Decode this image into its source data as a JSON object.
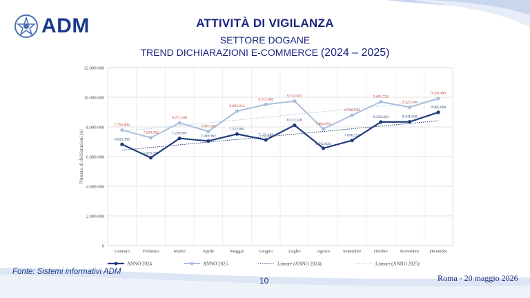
{
  "header": {
    "logo_text": "ADM",
    "title": "ATTIVITÀ DI VIGILANZA",
    "subtitle": "SETTORE DOGANE",
    "trend_main": "TREND DICHIARAZIONI E-COMMERCE ",
    "trend_years": "(2024 – 2025)"
  },
  "footer": {
    "source": "Fonte: Sistemi informativi ADM",
    "page_number": "10",
    "place_date": "Roma - 20 maggio 2026"
  },
  "colors": {
    "series_2024": "#1f3a7a",
    "series_2025": "#a9bedc",
    "label_2025": "#c0392b",
    "title": "#1a237e"
  },
  "chart_data": {
    "type": "line",
    "ylabel": "Numero di dichiarazioni (n)",
    "ylim": [
      0,
      12000000
    ],
    "yticks": [
      0,
      2000000,
      4000000,
      6000000,
      8000000,
      10000000,
      12000000
    ],
    "ytick_labels": [
      "0",
      "2.000.000",
      "4.000.000",
      "6.000.000",
      "8.000.000",
      "10.000.000",
      "12.000.000"
    ],
    "grid": true,
    "legend_position": "bottom",
    "categories": [
      "Gennaio",
      "Febbraio",
      "Marzo",
      "Aprile",
      "Maggio",
      "Giugno",
      "Luglio",
      "Agosto",
      "Settembre",
      "Ottobre",
      "Novembre",
      "Dicembre"
    ],
    "series": [
      {
        "name": "ANNO 2024",
        "values": [
          6825356,
          5923766,
          7228967,
          7049962,
          7522681,
          7125488,
          8113328,
          6562024,
          7090253,
          8332403,
          8341650,
          8985608
        ],
        "labels": [
          "6.825.356",
          "5.923.766",
          "7.228.967",
          "7.049.962",
          "7.522.681",
          "7.125.488",
          "8.113.328",
          "6.562.024",
          "7.090.253",
          "8.332.403",
          "8.341.650",
          "8.985.608"
        ]
      },
      {
        "name": "ANNO 2025",
        "values": [
          7792806,
          7268303,
          8271508,
          7697502,
          9063214,
          9513088,
          9741825,
          7864652,
          8788038,
          9691739,
          9325916,
          9924409
        ],
        "labels": [
          "7.792.806",
          "7.268.303",
          "8.271.508",
          "7.697.502",
          "9.063.214",
          "9.513.088",
          "9.741.825",
          "7.864.652",
          "8.788.038",
          "9.691.739",
          "9.325.916",
          "9.924.409"
        ]
      }
    ],
    "trendlines": [
      {
        "name": "Lineare (ANNO 2024)",
        "of": "ANNO 2024",
        "style": "dotted"
      },
      {
        "name": "Lineare (ANNO 2025)",
        "of": "ANNO 2025",
        "style": "dotted"
      }
    ]
  }
}
